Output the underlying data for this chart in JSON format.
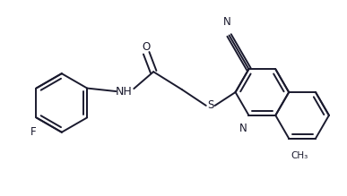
{
  "bg_color": "#ffffff",
  "line_color": "#1a1a2e",
  "line_width": 1.4,
  "font_size": 8.5,
  "figsize": [
    3.87,
    2.19
  ],
  "dpi": 100,
  "xlim": [
    0,
    387
  ],
  "ylim": [
    0,
    219
  ]
}
